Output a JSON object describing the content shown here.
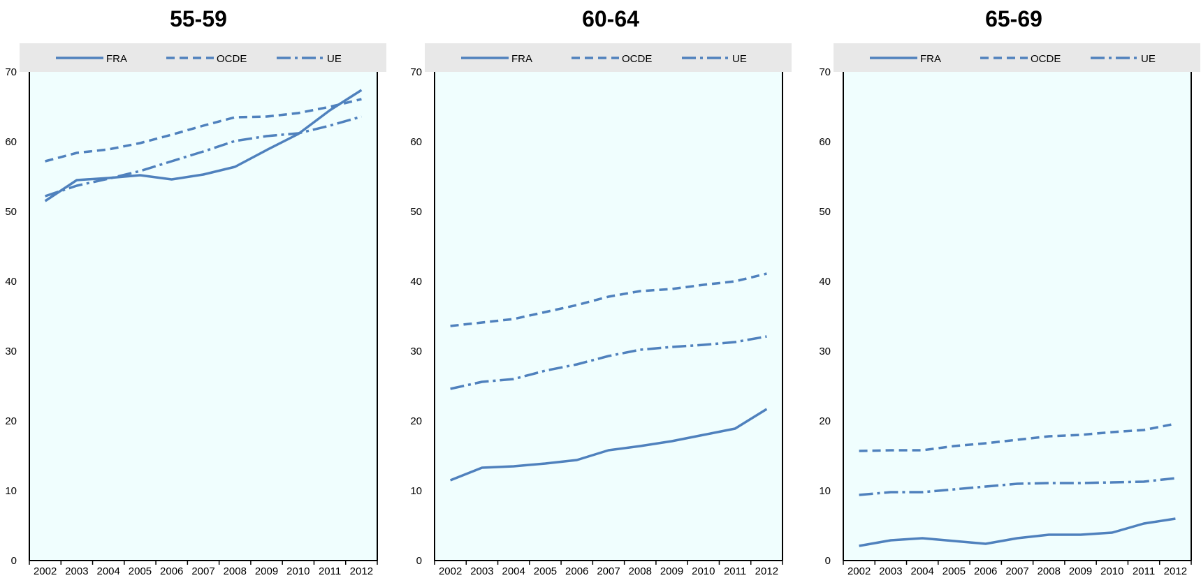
{
  "chart_data": [
    {
      "type": "line",
      "title": "55-59",
      "xlabel": "",
      "ylabel": "",
      "ylim": [
        0,
        70
      ],
      "yticks": [
        0,
        10,
        20,
        30,
        40,
        50,
        60,
        70
      ],
      "grid": false,
      "legend_position": "top",
      "x": [
        "2002",
        "2003",
        "2004",
        "2005",
        "2006",
        "2007",
        "2008",
        "2009",
        "2010",
        "2011",
        "2012"
      ],
      "series": [
        {
          "name": "FRA",
          "style": "solid",
          "values": [
            51.5,
            54.5,
            54.8,
            55.2,
            54.6,
            55.3,
            56.4,
            58.8,
            61.1,
            64.5,
            67.4
          ]
        },
        {
          "name": "OCDE",
          "style": "dashed",
          "values": [
            57.2,
            58.4,
            58.9,
            59.8,
            61.0,
            62.3,
            63.5,
            63.6,
            64.1,
            65.0,
            66.1
          ]
        },
        {
          "name": "UE",
          "style": "dashdot",
          "values": [
            52.2,
            53.7,
            54.7,
            55.8,
            57.2,
            58.6,
            60.1,
            60.8,
            61.2,
            62.3,
            63.6
          ]
        }
      ]
    },
    {
      "type": "line",
      "title": "60-64",
      "xlabel": "",
      "ylabel": "",
      "ylim": [
        0,
        70
      ],
      "yticks": [
        0,
        10,
        20,
        30,
        40,
        50,
        60,
        70
      ],
      "grid": false,
      "legend_position": "top",
      "x": [
        "2002",
        "2003",
        "2004",
        "2005",
        "2006",
        "2007",
        "2008",
        "2009",
        "2010",
        "2011",
        "2012"
      ],
      "series": [
        {
          "name": "FRA",
          "style": "solid",
          "values": [
            11.5,
            13.3,
            13.5,
            13.9,
            14.4,
            15.8,
            16.4,
            17.1,
            18.0,
            18.9,
            21.7
          ]
        },
        {
          "name": "OCDE",
          "style": "dashed",
          "values": [
            33.6,
            34.1,
            34.6,
            35.6,
            36.6,
            37.8,
            38.6,
            38.9,
            39.5,
            40.0,
            41.1
          ]
        },
        {
          "name": "UE",
          "style": "dashdot",
          "values": [
            24.6,
            25.6,
            26.0,
            27.2,
            28.1,
            29.3,
            30.2,
            30.6,
            30.9,
            31.3,
            32.1
          ]
        }
      ]
    },
    {
      "type": "line",
      "title": "65-69",
      "xlabel": "",
      "ylabel": "",
      "ylim": [
        0,
        70
      ],
      "yticks": [
        0,
        10,
        20,
        30,
        40,
        50,
        60,
        70
      ],
      "grid": false,
      "legend_position": "top",
      "x": [
        "2002",
        "2003",
        "2004",
        "2005",
        "2006",
        "2007",
        "2008",
        "2009",
        "2010",
        "2011",
        "2012"
      ],
      "series": [
        {
          "name": "FRA",
          "style": "solid",
          "values": [
            2.1,
            2.9,
            3.2,
            2.8,
            2.4,
            3.2,
            3.7,
            3.7,
            4.0,
            5.3,
            6.0
          ]
        },
        {
          "name": "OCDE",
          "style": "dashed",
          "values": [
            15.7,
            15.8,
            15.8,
            16.4,
            16.8,
            17.3,
            17.8,
            18.0,
            18.4,
            18.7,
            19.6
          ]
        },
        {
          "name": "UE",
          "style": "dashdot",
          "values": [
            9.4,
            9.8,
            9.8,
            10.2,
            10.6,
            11.0,
            11.1,
            11.1,
            11.2,
            11.3,
            11.8
          ]
        }
      ]
    }
  ],
  "colors": {
    "series": "#4f81bd",
    "plot_background": "#f0fefe",
    "legend_background": "#e8e8e8",
    "axis": "#000000"
  }
}
